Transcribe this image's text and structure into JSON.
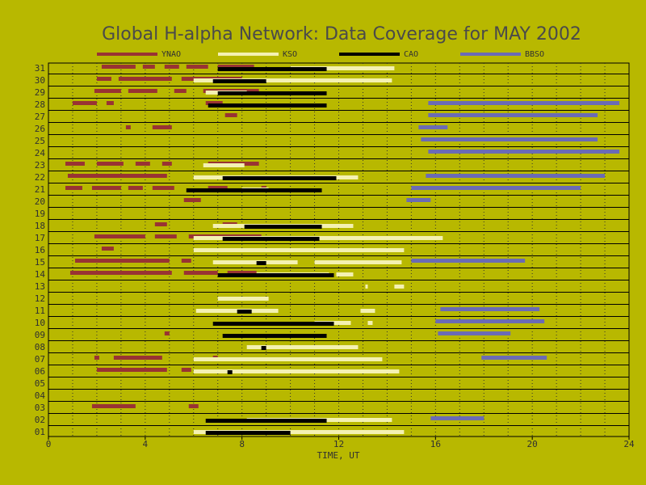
{
  "chart_data": {
    "type": "timeline",
    "title": "Global H-alpha Network: Data Coverage for MAY 2002",
    "xlabel": "TIME, UT",
    "xlim": [
      0,
      24
    ],
    "x_ticks": [
      0,
      4,
      8,
      12,
      16,
      20,
      24
    ],
    "ylim": [
      1,
      31
    ],
    "y_ticks": [
      "01",
      "02",
      "03",
      "04",
      "05",
      "06",
      "07",
      "08",
      "09",
      "10",
      "11",
      "12",
      "13",
      "14",
      "15",
      "16",
      "17",
      "18",
      "19",
      "20",
      "21",
      "22",
      "23",
      "24",
      "25",
      "26",
      "27",
      "28",
      "29",
      "30",
      "31"
    ],
    "grid": "dotted vertical every hour, solid horizontal per day",
    "legend_position": "top",
    "series": [
      {
        "name": "YNAO",
        "color": "#993333",
        "segments": [
          {
            "day": 3,
            "start": 1.8,
            "end": 3.6
          },
          {
            "day": 3,
            "start": 5.8,
            "end": 6.2
          },
          {
            "day": 6,
            "start": 2.0,
            "end": 4.9
          },
          {
            "day": 6,
            "start": 5.5,
            "end": 5.9
          },
          {
            "day": 7,
            "start": 1.9,
            "end": 2.1
          },
          {
            "day": 7,
            "start": 2.7,
            "end": 4.7
          },
          {
            "day": 7,
            "start": 6.8,
            "end": 7.0
          },
          {
            "day": 9,
            "start": 4.8,
            "end": 5.0
          },
          {
            "day": 14,
            "start": 0.9,
            "end": 5.1
          },
          {
            "day": 14,
            "start": 5.6,
            "end": 7.0
          },
          {
            "day": 14,
            "start": 7.4,
            "end": 8.6
          },
          {
            "day": 15,
            "start": 1.1,
            "end": 5.0
          },
          {
            "day": 15,
            "start": 5.5,
            "end": 5.9
          },
          {
            "day": 16,
            "start": 2.2,
            "end": 2.7
          },
          {
            "day": 17,
            "start": 1.9,
            "end": 4.0
          },
          {
            "day": 17,
            "start": 4.4,
            "end": 5.3
          },
          {
            "day": 17,
            "start": 5.8,
            "end": 8.8
          },
          {
            "day": 18,
            "start": 4.4,
            "end": 4.9
          },
          {
            "day": 18,
            "start": 7.2,
            "end": 7.8
          },
          {
            "day": 20,
            "start": 5.6,
            "end": 6.3
          },
          {
            "day": 21,
            "start": 0.7,
            "end": 1.4
          },
          {
            "day": 21,
            "start": 1.8,
            "end": 3.0
          },
          {
            "day": 21,
            "start": 3.3,
            "end": 3.9
          },
          {
            "day": 21,
            "start": 4.3,
            "end": 5.2
          },
          {
            "day": 21,
            "start": 6.6,
            "end": 7.4
          },
          {
            "day": 21,
            "start": 8.8,
            "end": 9.0
          },
          {
            "day": 22,
            "start": 0.8,
            "end": 4.9
          },
          {
            "day": 23,
            "start": 0.7,
            "end": 1.5
          },
          {
            "day": 23,
            "start": 2.0,
            "end": 3.1
          },
          {
            "day": 23,
            "start": 3.6,
            "end": 4.2
          },
          {
            "day": 23,
            "start": 4.7,
            "end": 5.1
          },
          {
            "day": 23,
            "start": 6.6,
            "end": 8.7
          },
          {
            "day": 26,
            "start": 3.2,
            "end": 3.4
          },
          {
            "day": 26,
            "start": 4.3,
            "end": 5.1
          },
          {
            "day": 27,
            "start": 7.3,
            "end": 7.8
          },
          {
            "day": 28,
            "start": 1.0,
            "end": 2.0
          },
          {
            "day": 28,
            "start": 2.4,
            "end": 2.7
          },
          {
            "day": 28,
            "start": 6.5,
            "end": 7.2
          },
          {
            "day": 29,
            "start": 1.9,
            "end": 3.0
          },
          {
            "day": 29,
            "start": 3.3,
            "end": 4.5
          },
          {
            "day": 29,
            "start": 5.2,
            "end": 5.7
          },
          {
            "day": 29,
            "start": 6.4,
            "end": 8.7
          },
          {
            "day": 30,
            "start": 2.0,
            "end": 2.6
          },
          {
            "day": 30,
            "start": 2.9,
            "end": 5.1
          },
          {
            "day": 30,
            "start": 5.5,
            "end": 8.0
          },
          {
            "day": 31,
            "start": 2.2,
            "end": 3.6
          },
          {
            "day": 31,
            "start": 3.9,
            "end": 4.4
          },
          {
            "day": 31,
            "start": 4.8,
            "end": 5.4
          },
          {
            "day": 31,
            "start": 5.7,
            "end": 6.6
          },
          {
            "day": 31,
            "start": 7.0,
            "end": 8.5
          }
        ]
      },
      {
        "name": "KSO",
        "color": "#f4f1b2",
        "segments": [
          {
            "day": 1,
            "start": 6.0,
            "end": 14.7
          },
          {
            "day": 2,
            "start": 8.2,
            "end": 14.2
          },
          {
            "day": 6,
            "start": 6.0,
            "end": 14.5
          },
          {
            "day": 7,
            "start": 6.0,
            "end": 13.8
          },
          {
            "day": 8,
            "start": 8.2,
            "end": 12.8
          },
          {
            "day": 10,
            "start": 11.0,
            "end": 12.5
          },
          {
            "day": 10,
            "start": 13.2,
            "end": 13.4
          },
          {
            "day": 11,
            "start": 6.1,
            "end": 9.5
          },
          {
            "day": 11,
            "start": 12.9,
            "end": 13.5
          },
          {
            "day": 12,
            "start": 7.0,
            "end": 9.1
          },
          {
            "day": 13,
            "start": 13.1,
            "end": 13.2
          },
          {
            "day": 13,
            "start": 14.3,
            "end": 14.7
          },
          {
            "day": 14,
            "start": 8.6,
            "end": 11.6
          },
          {
            "day": 14,
            "start": 11.9,
            "end": 12.6
          },
          {
            "day": 15,
            "start": 6.8,
            "end": 10.3
          },
          {
            "day": 15,
            "start": 11.0,
            "end": 14.6
          },
          {
            "day": 16,
            "start": 6.0,
            "end": 14.7
          },
          {
            "day": 17,
            "start": 6.0,
            "end": 16.3
          },
          {
            "day": 18,
            "start": 6.8,
            "end": 12.6
          },
          {
            "day": 21,
            "start": 8.0,
            "end": 9.1
          },
          {
            "day": 22,
            "start": 6.0,
            "end": 12.8
          },
          {
            "day": 23,
            "start": 6.4,
            "end": 8.1
          },
          {
            "day": 29,
            "start": 6.5,
            "end": 8.2
          },
          {
            "day": 30,
            "start": 6.0,
            "end": 14.2
          },
          {
            "day": 31,
            "start": 10.0,
            "end": 14.3
          }
        ]
      },
      {
        "name": "CAO",
        "color": "#000000",
        "segments": [
          {
            "day": 1,
            "start": 6.5,
            "end": 10.0
          },
          {
            "day": 2,
            "start": 6.5,
            "end": 11.5
          },
          {
            "day": 6,
            "start": 7.4,
            "end": 7.6
          },
          {
            "day": 8,
            "start": 8.8,
            "end": 9.0
          },
          {
            "day": 9,
            "start": 7.2,
            "end": 11.5
          },
          {
            "day": 10,
            "start": 6.8,
            "end": 11.8
          },
          {
            "day": 11,
            "start": 7.8,
            "end": 8.4
          },
          {
            "day": 14,
            "start": 7.0,
            "end": 11.8
          },
          {
            "day": 15,
            "start": 8.6,
            "end": 9.0
          },
          {
            "day": 17,
            "start": 7.2,
            "end": 11.2
          },
          {
            "day": 18,
            "start": 8.1,
            "end": 11.3
          },
          {
            "day": 21,
            "start": 5.7,
            "end": 11.3
          },
          {
            "day": 22,
            "start": 7.2,
            "end": 11.9
          },
          {
            "day": 28,
            "start": 6.6,
            "end": 11.5
          },
          {
            "day": 29,
            "start": 7.0,
            "end": 11.5
          },
          {
            "day": 30,
            "start": 6.8,
            "end": 9.0
          },
          {
            "day": 31,
            "start": 7.0,
            "end": 11.5
          }
        ]
      },
      {
        "name": "BBSO",
        "color": "#6b6bb5",
        "segments": [
          {
            "day": 2,
            "start": 15.8,
            "end": 18.0
          },
          {
            "day": 7,
            "start": 17.9,
            "end": 20.6
          },
          {
            "day": 9,
            "start": 16.1,
            "end": 19.1
          },
          {
            "day": 10,
            "start": 16.0,
            "end": 20.5
          },
          {
            "day": 11,
            "start": 16.2,
            "end": 20.3
          },
          {
            "day": 15,
            "start": 15.0,
            "end": 19.7
          },
          {
            "day": 20,
            "start": 14.8,
            "end": 15.8
          },
          {
            "day": 21,
            "start": 15.0,
            "end": 22.0
          },
          {
            "day": 22,
            "start": 15.6,
            "end": 23.0
          },
          {
            "day": 24,
            "start": 15.7,
            "end": 23.6
          },
          {
            "day": 25,
            "start": 15.4,
            "end": 22.7
          },
          {
            "day": 26,
            "start": 15.3,
            "end": 16.5
          },
          {
            "day": 27,
            "start": 15.7,
            "end": 22.7
          },
          {
            "day": 28,
            "start": 15.7,
            "end": 23.6
          }
        ]
      }
    ]
  }
}
